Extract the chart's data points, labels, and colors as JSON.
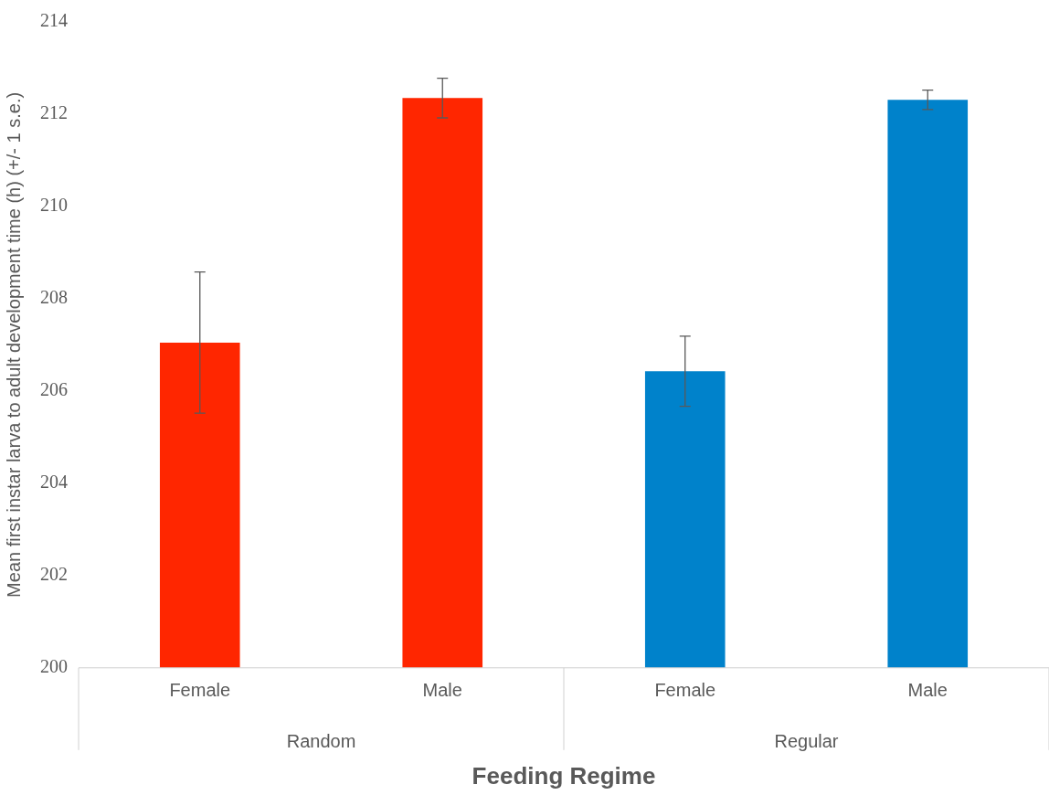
{
  "chart_data": {
    "type": "bar",
    "xlabel": "Feeding Regime",
    "ylabel": "Mean first instar larva to adult development time (h) (+/- 1 s.e.)",
    "categories": [
      "Female",
      "Male",
      "Female",
      "Male"
    ],
    "values": [
      207.05,
      212.35,
      206.43,
      212.31
    ],
    "errors": [
      1.53,
      0.43,
      0.76,
      0.21
    ],
    "colors": [
      "#ff2600",
      "#ff2600",
      "#0082cb",
      "#0082cb"
    ],
    "ylim": [
      200,
      214
    ],
    "yticks": [
      200,
      202,
      204,
      206,
      208,
      210,
      212,
      214
    ],
    "annotations": [
      "Random",
      "Regular"
    ],
    "grid": false,
    "legend": false
  }
}
